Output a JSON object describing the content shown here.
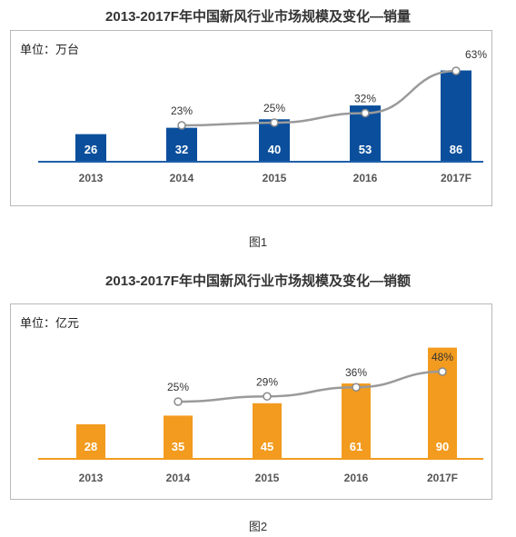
{
  "charts": [
    {
      "title": "2013-2017F年中国新风行业市场规模及变化—销量",
      "unit": "单位：万台",
      "caption": "图1",
      "color": "#0b4f9c",
      "axis_color": "#1f5fa8"
    },
    {
      "title": "2013-2017F年中国新风行业市场规模及变化—销额",
      "unit": "单位：亿元",
      "caption": "图2",
      "color": "#f29b1f",
      "axis_color": "#f29b1f"
    }
  ],
  "chart_data": [
    {
      "type": "bar",
      "title": "2013-2017F年中国新风行业市场规模及变化—销量",
      "ylabel": "单位：万台",
      "categories": [
        "2013",
        "2014",
        "2015",
        "2016",
        "2017F"
      ],
      "series": [
        {
          "values": [
            26,
            32,
            40,
            53,
            86
          ]
        }
      ],
      "growth_line": {
        "type": "line",
        "categories": [
          "2014",
          "2015",
          "2016",
          "2017F"
        ],
        "values": [
          23,
          25,
          32,
          63
        ],
        "labels": [
          "23%",
          "25%",
          "32%",
          "63%"
        ]
      },
      "ylim": [
        0,
        95
      ],
      "grid": false
    },
    {
      "type": "bar",
      "title": "2013-2017F年中国新风行业市场规模及变化—销额",
      "ylabel": "单位：亿元",
      "categories": [
        "2013",
        "2014",
        "2015",
        "2016",
        "2017F"
      ],
      "series": [
        {
          "values": [
            28,
            35,
            45,
            61,
            90
          ]
        }
      ],
      "growth_line": {
        "type": "line",
        "categories": [
          "2014",
          "2015",
          "2016",
          "2017F"
        ],
        "values": [
          25,
          29,
          36,
          48
        ],
        "labels": [
          "25%",
          "29%",
          "36%",
          "48%"
        ]
      },
      "ylim": [
        0,
        100
      ],
      "grid": false
    }
  ]
}
